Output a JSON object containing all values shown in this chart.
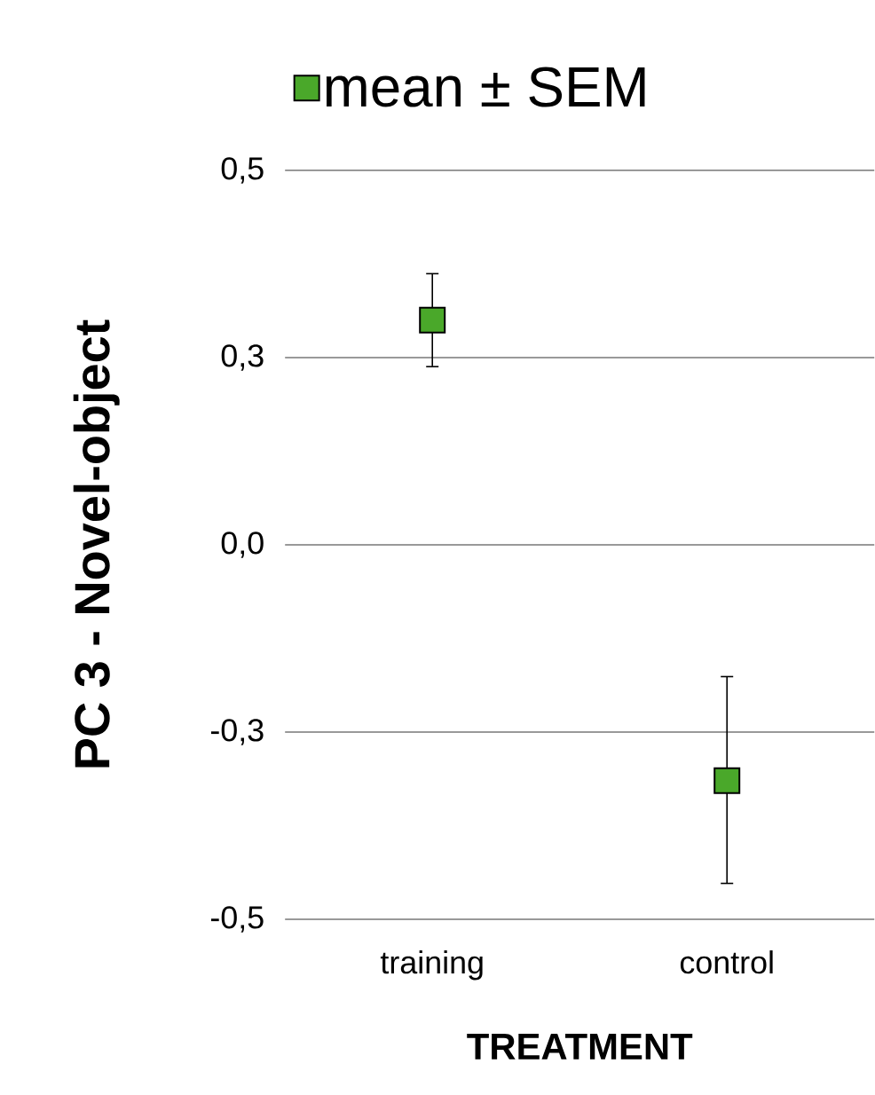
{
  "chart_data": {
    "type": "scatter",
    "xlabel": "TREATMENT",
    "ylabel": "PC 3 - Novel-object",
    "categories": [
      "training",
      "control"
    ],
    "series": [
      {
        "name": "mean ± SEM",
        "color": "#4aa82a",
        "values": [
          0.3,
          -0.315
        ],
        "errors": [
          [
            0.237,
            0.363
          ],
          [
            -0.453,
            -0.175
          ]
        ]
      }
    ],
    "ylim": [
      -0.5,
      0.5
    ],
    "yticks": [
      {
        "value": 0.5,
        "label": "0,5"
      },
      {
        "value": 0.25,
        "label": "0,3"
      },
      {
        "value": 0,
        "label": "0,0"
      },
      {
        "value": -0.25,
        "label": "-0,3"
      },
      {
        "value": -0.5,
        "label": "-0,5"
      }
    ],
    "grid": "y",
    "legend": "top",
    "marker": "square"
  }
}
